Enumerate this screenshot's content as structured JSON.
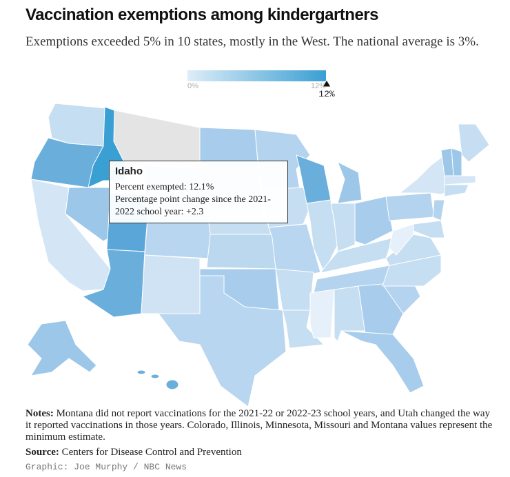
{
  "header": {
    "title": "Vaccination exemptions among kindergartners",
    "subtitle": "Exemptions exceeded 5% in 10 states, mostly in the West. The national average is 3%."
  },
  "legend": {
    "min_label": "0%",
    "max_label": "12%",
    "marker_label": "12%"
  },
  "tooltip": {
    "state": "Idaho",
    "lines": [
      "Percent exempted: 12.1%",
      "Percentage point change since the 2021-2022 school year: +2.3"
    ]
  },
  "notes": {
    "label": "Notes:",
    "text": "Montana did not report vaccinations for the 2021-22 or 2022-23 school years, and Utah changed the way it reported vaccinations in those years. Colorado, Illinois, Minnesota, Missouri and Montana values represent the minimum estimate."
  },
  "source": {
    "label": "Source:",
    "text": "Centers for Disease Control and Prevention"
  },
  "credit": "Graphic: Joe Murphy / NBC News"
}
